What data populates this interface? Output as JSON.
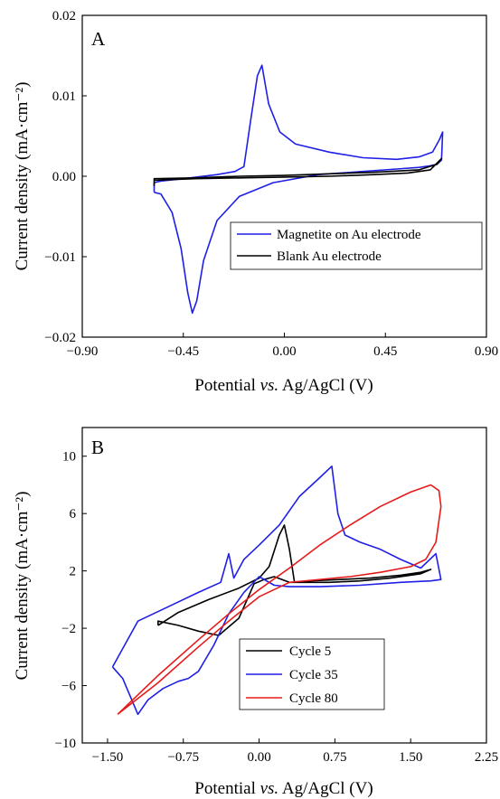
{
  "chart_data": [
    {
      "panel": "A",
      "type": "line",
      "xlabel": "Potential vs. Ag/AgCl (V)",
      "xlabel_parts": [
        "Potential ",
        "vs.",
        " Ag/AgCl (V)"
      ],
      "ylabel": "Current density (mA·cm⁻²)",
      "xlim": [
        -0.9,
        0.9
      ],
      "ylim": [
        -0.02,
        0.02
      ],
      "x_ticks": [
        -0.9,
        -0.45,
        0.0,
        0.45,
        0.9
      ],
      "x_tick_labels": [
        "−0.90",
        "−0.45",
        "0.00",
        "0.45",
        "0.90"
      ],
      "y_ticks": [
        -0.02,
        -0.01,
        0.0,
        0.01,
        0.02
      ],
      "y_tick_labels": [
        "−0.02",
        "−0.01",
        "0.00",
        "0.01",
        "0.02"
      ],
      "grid": false,
      "legend_position": "lower-right",
      "series": [
        {
          "name": "Magnetite on Au electrode",
          "color": "#1f1fe6",
          "points": [
            [
              -0.58,
              -0.002
            ],
            [
              -0.55,
              -0.0022
            ],
            [
              -0.5,
              -0.0045
            ],
            [
              -0.46,
              -0.009
            ],
            [
              -0.43,
              -0.0145
            ],
            [
              -0.41,
              -0.017
            ],
            [
              -0.39,
              -0.0155
            ],
            [
              -0.36,
              -0.0105
            ],
            [
              -0.3,
              -0.0055
            ],
            [
              -0.2,
              -0.0025
            ],
            [
              -0.05,
              -0.0008
            ],
            [
              0.15,
              0.0002
            ],
            [
              0.35,
              0.0006
            ],
            [
              0.5,
              0.0009
            ],
            [
              0.6,
              0.0011
            ],
            [
              0.65,
              0.0013
            ],
            [
              0.68,
              0.0015
            ],
            [
              0.7,
              0.002
            ],
            [
              0.705,
              0.0055
            ],
            [
              0.69,
              0.0045
            ],
            [
              0.66,
              0.003
            ],
            [
              0.6,
              0.0024
            ],
            [
              0.5,
              0.0021
            ],
            [
              0.35,
              0.0023
            ],
            [
              0.2,
              0.003
            ],
            [
              0.05,
              0.004
            ],
            [
              -0.02,
              0.0055
            ],
            [
              -0.07,
              0.009
            ],
            [
              -0.1,
              0.0138
            ],
            [
              -0.12,
              0.0125
            ],
            [
              -0.15,
              0.007
            ],
            [
              -0.18,
              0.0012
            ],
            [
              -0.22,
              0.0006
            ],
            [
              -0.3,
              0.0002
            ],
            [
              -0.45,
              -0.0003
            ],
            [
              -0.55,
              -0.0006
            ],
            [
              -0.58,
              -0.0008
            ],
            [
              -0.58,
              -0.002
            ]
          ]
        },
        {
          "name": "Blank Au electrode",
          "color": "#000000",
          "points": [
            [
              -0.58,
              -0.0005
            ],
            [
              -0.4,
              -0.0003
            ],
            [
              -0.2,
              -0.0002
            ],
            [
              0.0,
              -0.0001
            ],
            [
              0.2,
              0.0
            ],
            [
              0.4,
              0.0002
            ],
            [
              0.55,
              0.0004
            ],
            [
              0.65,
              0.0008
            ],
            [
              0.7,
              0.0022
            ],
            [
              0.68,
              0.0015
            ],
            [
              0.6,
              0.0008
            ],
            [
              0.4,
              0.0005
            ],
            [
              0.2,
              0.0003
            ],
            [
              0.0,
              0.0001
            ],
            [
              -0.2,
              0.0
            ],
            [
              -0.4,
              -0.0002
            ],
            [
              -0.58,
              -0.0003
            ],
            [
              -0.58,
              -0.0012
            ]
          ]
        }
      ]
    },
    {
      "panel": "B",
      "type": "line",
      "xlabel": "Potential vs. Ag/AgCl (V)",
      "xlabel_parts": [
        "Potential ",
        "vs.",
        " Ag/AgCl (V)"
      ],
      "ylabel": "Current density (mA·cm⁻²)",
      "xlim": [
        -1.75,
        2.25
      ],
      "ylim": [
        -10,
        12
      ],
      "x_ticks": [
        -1.5,
        -0.75,
        0.0,
        0.75,
        1.5,
        2.25
      ],
      "x_tick_labels": [
        "−1.50",
        "−0.75",
        "0.00",
        "0.75",
        "1.50",
        "2.25"
      ],
      "y_ticks": [
        -10,
        -6,
        -2,
        2,
        6,
        10
      ],
      "y_tick_labels": [
        "−10",
        "−6",
        "−2",
        "2",
        "6",
        "10"
      ],
      "grid": false,
      "legend_position": "lower-right",
      "series": [
        {
          "name": "Cycle 5",
          "color": "#000000",
          "points": [
            [
              -1.0,
              -1.8
            ],
            [
              -0.8,
              -0.9
            ],
            [
              -0.5,
              0.0
            ],
            [
              -0.2,
              0.8
            ],
            [
              0.0,
              1.5
            ],
            [
              0.1,
              2.3
            ],
            [
              0.2,
              4.5
            ],
            [
              0.25,
              5.2
            ],
            [
              0.3,
              3.5
            ],
            [
              0.35,
              1.2
            ],
            [
              0.5,
              1.3
            ],
            [
              0.8,
              1.4
            ],
            [
              1.1,
              1.5
            ],
            [
              1.4,
              1.7
            ],
            [
              1.6,
              1.9
            ],
            [
              1.7,
              2.1
            ],
            [
              1.6,
              1.8
            ],
            [
              1.3,
              1.5
            ],
            [
              1.0,
              1.3
            ],
            [
              0.7,
              1.2
            ],
            [
              0.5,
              1.2
            ],
            [
              0.3,
              1.2
            ],
            [
              0.15,
              1.6
            ],
            [
              0.05,
              1.4
            ],
            [
              -0.05,
              1.1
            ],
            [
              -0.2,
              -1.3
            ],
            [
              -0.4,
              -2.5
            ],
            [
              -0.6,
              -2.2
            ],
            [
              -0.8,
              -1.8
            ],
            [
              -1.0,
              -1.5
            ],
            [
              -1.0,
              -1.8
            ]
          ]
        },
        {
          "name": "Cycle 35",
          "color": "#1f1fe6",
          "points": [
            [
              -1.45,
              -4.7
            ],
            [
              -1.35,
              -5.5
            ],
            [
              -1.2,
              -8.0
            ],
            [
              -1.1,
              -7.0
            ],
            [
              -0.95,
              -6.2
            ],
            [
              -0.8,
              -5.7
            ],
            [
              -0.7,
              -5.5
            ],
            [
              -0.6,
              -5.0
            ],
            [
              -0.45,
              -3.2
            ],
            [
              -0.3,
              -1.0
            ],
            [
              -0.15,
              0.5
            ],
            [
              0.0,
              1.6
            ],
            [
              0.15,
              1.0
            ],
            [
              0.3,
              0.9
            ],
            [
              0.6,
              0.9
            ],
            [
              1.0,
              1.0
            ],
            [
              1.4,
              1.2
            ],
            [
              1.7,
              1.3
            ],
            [
              1.8,
              1.4
            ],
            [
              1.75,
              3.2
            ],
            [
              1.6,
              2.2
            ],
            [
              1.4,
              2.8
            ],
            [
              1.2,
              3.5
            ],
            [
              1.0,
              4.0
            ],
            [
              0.85,
              4.5
            ],
            [
              0.78,
              6.0
            ],
            [
              0.72,
              9.3
            ],
            [
              0.6,
              8.5
            ],
            [
              0.4,
              7.2
            ],
            [
              0.2,
              5.2
            ],
            [
              0.0,
              3.8
            ],
            [
              -0.15,
              2.8
            ],
            [
              -0.25,
              1.5
            ],
            [
              -0.3,
              3.2
            ],
            [
              -0.38,
              1.2
            ],
            [
              -0.6,
              0.5
            ],
            [
              -0.9,
              -0.5
            ],
            [
              -1.2,
              -1.5
            ],
            [
              -1.45,
              -4.7
            ]
          ]
        },
        {
          "name": "Cycle 80",
          "color": "#e61a1a",
          "points": [
            [
              -1.4,
              -8.0
            ],
            [
              -1.0,
              -5.3
            ],
            [
              -0.6,
              -2.8
            ],
            [
              -0.3,
              -1.0
            ],
            [
              0.0,
              0.7
            ],
            [
              0.3,
              2.2
            ],
            [
              0.6,
              3.8
            ],
            [
              0.9,
              5.2
            ],
            [
              1.2,
              6.5
            ],
            [
              1.5,
              7.5
            ],
            [
              1.7,
              8.0
            ],
            [
              1.78,
              7.6
            ],
            [
              1.8,
              6.5
            ],
            [
              1.75,
              4.0
            ],
            [
              1.65,
              2.8
            ],
            [
              1.5,
              2.3
            ],
            [
              1.2,
              1.9
            ],
            [
              0.9,
              1.6
            ],
            [
              0.6,
              1.4
            ],
            [
              0.3,
              1.2
            ],
            [
              0.0,
              0.2
            ],
            [
              -0.3,
              -1.5
            ],
            [
              -0.6,
              -3.3
            ],
            [
              -1.0,
              -5.8
            ],
            [
              -1.4,
              -8.0
            ]
          ]
        }
      ]
    }
  ]
}
